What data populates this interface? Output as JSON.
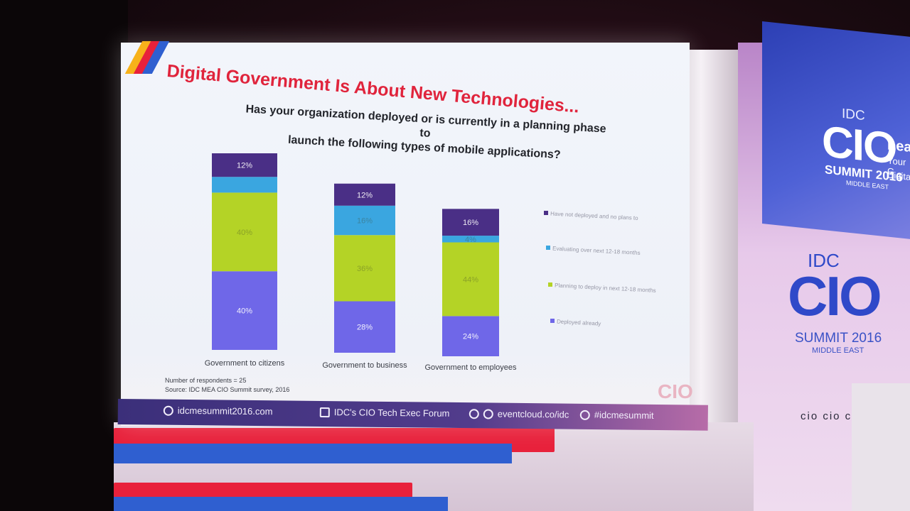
{
  "slide": {
    "title": "Digital Government Is About New Technologies...",
    "question_line1": "Has your organization deployed or is currently in a planning phase to",
    "question_line2": "launch the following types of mobile applications?",
    "respondents": "Number of respondents = 25",
    "source": "Source: IDC MEA CIO Summit survey, 2016"
  },
  "chart_data": {
    "type": "bar",
    "stacked": true,
    "categories": [
      "Government to citizens",
      "Government to business",
      "Government to employees"
    ],
    "series": [
      {
        "name": "Deployed already",
        "values": [
          40,
          28,
          24
        ],
        "color": "#6f67e8"
      },
      {
        "name": "Planning to deploy in next 12-18 months",
        "values": [
          40,
          36,
          44
        ],
        "color": "#b4d326"
      },
      {
        "name": "Evaluating over next 12-18 months",
        "values": [
          8,
          16,
          4
        ],
        "color": "#3aa6e0"
      },
      {
        "name": "Have not deployed and no plans to",
        "values": [
          12,
          12,
          16
        ],
        "color": "#4a2f86"
      }
    ],
    "data_labels": [
      [
        "40%",
        "40%",
        "",
        "12%"
      ],
      [
        "28%",
        "36%",
        "16%",
        "12%"
      ],
      [
        "24%",
        "44%",
        "4%",
        "16%"
      ]
    ],
    "ylim": [
      0,
      100
    ],
    "legend_position": "right"
  },
  "footer": {
    "website": "idcmesummit2016.com",
    "linkedin": "IDC's CIO Tech Exec Forum",
    "app": "eventcloud.co/idc",
    "twitter": "#idcmesummit"
  },
  "venue": {
    "banner_idc": "IDC",
    "banner_cio": "CIO",
    "banner_summit": "SUMMIT 2016",
    "banner_region": "MIDDLE EAST",
    "banner_lead": "Leadi",
    "banner_your": "Your G",
    "banner_digital": "Digita",
    "slide_corner_logo": "CIO",
    "wall_logos": "cio cio cio"
  },
  "colors": {
    "title_red": "#e0243c",
    "footer_purple": "#3b2f7a",
    "brand_blue": "#2f49c9"
  }
}
